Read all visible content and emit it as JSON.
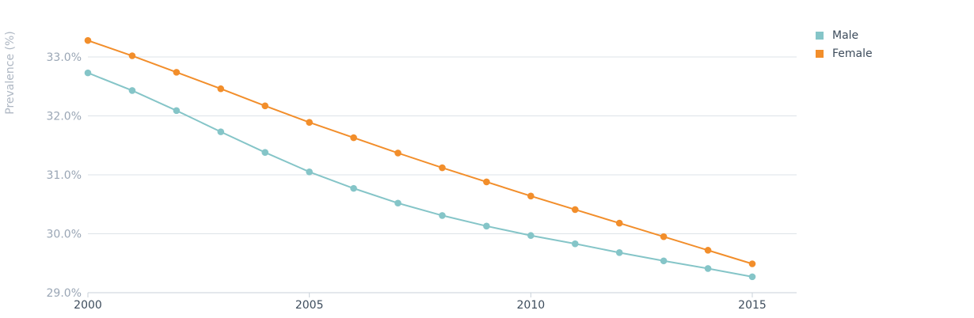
{
  "chart_data": {
    "type": "line",
    "title": "",
    "xlabel": "",
    "ylabel": "Prevalence (%)",
    "x": [
      2000,
      2001,
      2002,
      2003,
      2004,
      2005,
      2006,
      2007,
      2008,
      2009,
      2010,
      2011,
      2012,
      2013,
      2014,
      2015
    ],
    "x_ticks": [
      "2000",
      "2005",
      "2010",
      "2015"
    ],
    "y_ticks": [
      "29.0%",
      "30.0%",
      "31.0%",
      "32.0%",
      "33.0%"
    ],
    "ylim": [
      29.0,
      33.4
    ],
    "grid": true,
    "legend_position": "top-right",
    "series": [
      {
        "name": "Male",
        "color": "#85c5c8",
        "values": [
          32.73,
          32.43,
          32.09,
          31.73,
          31.38,
          31.05,
          30.77,
          30.52,
          30.31,
          30.13,
          29.97,
          29.83,
          29.68,
          29.54,
          29.41,
          29.27
        ]
      },
      {
        "name": "Female",
        "color": "#f28e2b",
        "values": [
          33.28,
          33.02,
          32.74,
          32.46,
          32.17,
          31.89,
          31.63,
          31.37,
          31.12,
          30.88,
          30.64,
          30.41,
          30.18,
          29.95,
          29.72,
          29.49
        ]
      }
    ]
  }
}
